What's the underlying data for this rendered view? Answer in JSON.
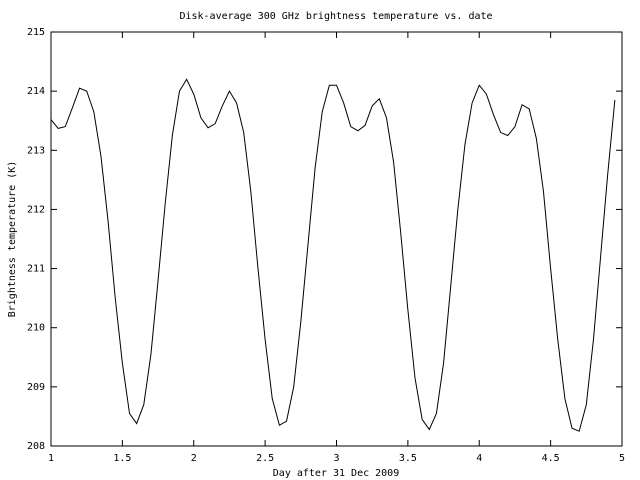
{
  "chart_data": {
    "type": "line",
    "title": "Disk-average 300 GHz brightness temperature vs. date",
    "xlabel": "Day after 31 Dec 2009",
    "ylabel": "Brightness temperature (K)",
    "color": "#000000",
    "x": [
      1.0,
      1.05,
      1.1,
      1.15,
      1.2,
      1.25,
      1.3,
      1.35,
      1.4,
      1.45,
      1.5,
      1.55,
      1.6,
      1.65,
      1.7,
      1.75,
      1.8,
      1.85,
      1.9,
      1.95,
      2.0,
      2.05,
      2.1,
      2.15,
      2.2,
      2.25,
      2.3,
      2.35,
      2.4,
      2.45,
      2.5,
      2.55,
      2.6,
      2.65,
      2.7,
      2.75,
      2.8,
      2.85,
      2.9,
      2.95,
      3.0,
      3.05,
      3.1,
      3.15,
      3.2,
      3.25,
      3.3,
      3.35,
      3.4,
      3.45,
      3.5,
      3.55,
      3.6,
      3.65,
      3.7,
      3.75,
      3.8,
      3.85,
      3.9,
      3.95,
      4.0,
      4.05,
      4.1,
      4.15,
      4.2,
      4.25,
      4.3,
      4.35,
      4.4,
      4.45,
      4.5,
      4.55,
      4.6,
      4.65,
      4.7,
      4.75,
      4.8,
      4.85,
      4.9,
      4.95
    ],
    "values": [
      213.52,
      213.37,
      213.4,
      213.72,
      214.05,
      214.0,
      213.65,
      212.9,
      211.8,
      210.5,
      209.4,
      208.55,
      208.38,
      208.7,
      209.55,
      210.8,
      212.1,
      213.25,
      214.0,
      214.2,
      213.95,
      213.55,
      213.38,
      213.45,
      213.75,
      214.0,
      213.8,
      213.3,
      212.3,
      211.0,
      209.8,
      208.8,
      208.35,
      208.42,
      209.0,
      210.1,
      211.4,
      212.7,
      213.65,
      214.1,
      214.1,
      213.8,
      213.4,
      213.33,
      213.42,
      213.75,
      213.87,
      213.55,
      212.8,
      211.6,
      210.3,
      209.15,
      208.45,
      208.28,
      208.55,
      209.4,
      210.7,
      212.0,
      213.1,
      213.8,
      214.1,
      213.95,
      213.6,
      213.3,
      213.25,
      213.4,
      213.77,
      213.7,
      213.2,
      212.3,
      211.0,
      209.8,
      208.8,
      208.3,
      208.25,
      208.7,
      209.8,
      211.2,
      212.6,
      213.85
    ],
    "xlim": [
      1,
      5
    ],
    "xticks": [
      1,
      1.5,
      2,
      2.5,
      3,
      3.5,
      4,
      4.5,
      5
    ],
    "ylim": [
      208,
      215
    ],
    "yticks": [
      208,
      209,
      210,
      211,
      212,
      213,
      214,
      215
    ],
    "grid": false
  }
}
